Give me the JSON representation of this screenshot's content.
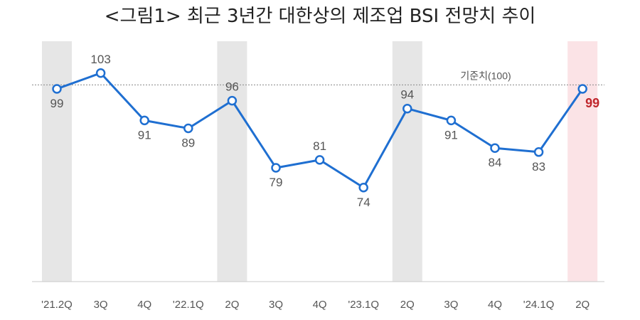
{
  "title": "<그림1> 최근 3년간 대한상의 제조업 BSI 전망치 추이",
  "colors": {
    "line": "#1f6fd1",
    "marker_fill": "#ffffff",
    "band_gray": "#e6e6e6",
    "band_highlight": "#fbe3e6",
    "highlight_label": "#c0272d",
    "reference_line": "#888888"
  },
  "chart_data": {
    "type": "line",
    "categories": [
      "'21.2Q",
      "3Q",
      "4Q",
      "'22.1Q",
      "2Q",
      "3Q",
      "4Q",
      "'23.1Q",
      "2Q",
      "3Q",
      "4Q",
      "'24.1Q",
      "2Q"
    ],
    "series": [
      {
        "values": [
          99,
          103,
          91,
          89,
          96,
          79,
          81,
          74,
          94,
          91,
          84,
          83,
          99
        ]
      }
    ],
    "value_labels": [
      "99",
      "103",
      "91",
      "89",
      "96",
      "79",
      "81",
      "74",
      "94",
      "91",
      "84",
      "83",
      "99"
    ],
    "reference_line": {
      "value": 100,
      "label": "기준치(100)"
    },
    "shaded_categories": [
      0,
      4,
      8
    ],
    "highlight_category": 12,
    "ylim": [
      50,
      108
    ],
    "grid": false,
    "legend": "none"
  }
}
